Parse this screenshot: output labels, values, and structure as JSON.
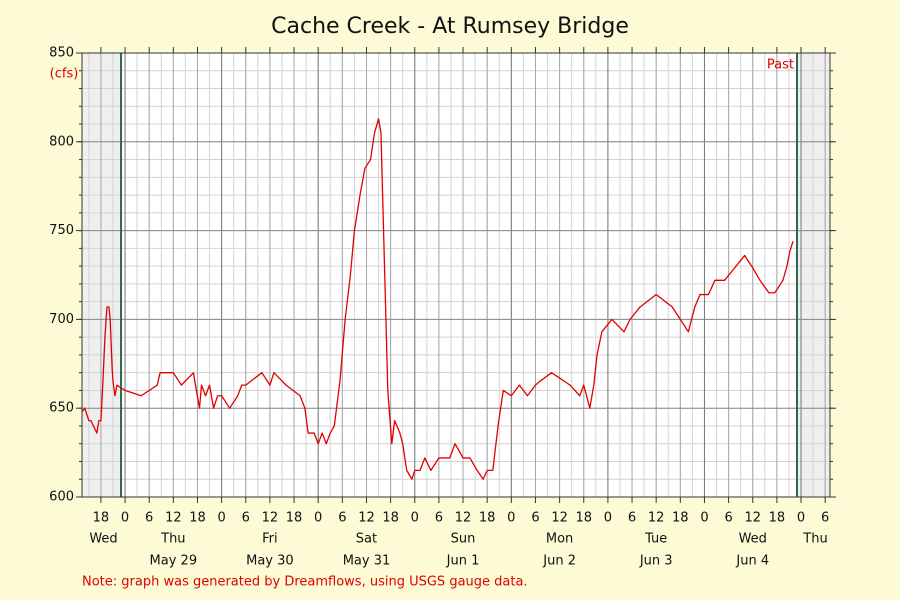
{
  "chart_data": {
    "type": "line",
    "title": "Cache Creek - At Rumsey Bridge",
    "y_unit": "(cfs)",
    "note": "Note: graph was generated by Dreamflows, using USGS gauge data.",
    "window_label": "Past",
    "window": [
      -1,
      167
    ],
    "color": "#e00000",
    "grid": true,
    "minor_grid": {
      "x_step": 3,
      "y_step": 10
    },
    "xlim": [
      -10.7,
      175.2
    ],
    "ylim": [
      600,
      850
    ],
    "yticks": [
      600,
      650,
      700,
      750,
      800,
      850
    ],
    "xticks": [
      {
        "value": -6,
        "label": "18"
      },
      0,
      6,
      12,
      18,
      {
        "value": 24,
        "label": "0"
      },
      {
        "value": 30,
        "label": "6"
      },
      {
        "value": 36,
        "label": "12"
      },
      {
        "value": 42,
        "label": "18"
      },
      {
        "value": 48,
        "label": "0"
      },
      {
        "value": 54,
        "label": "6"
      },
      {
        "value": 60,
        "label": "12"
      },
      {
        "value": 66,
        "label": "18"
      },
      {
        "value": 72,
        "label": "0"
      },
      {
        "value": 78,
        "label": "6"
      },
      {
        "value": 84,
        "label": "12"
      },
      {
        "value": 90,
        "label": "18"
      },
      {
        "value": 96,
        "label": "0"
      },
      {
        "value": 102,
        "label": "6"
      },
      {
        "value": 108,
        "label": "12"
      },
      {
        "value": 114,
        "label": "18"
      },
      {
        "value": 120,
        "label": "0"
      },
      {
        "value": 126,
        "label": "6"
      },
      {
        "value": 132,
        "label": "12"
      },
      {
        "value": 138,
        "label": "18"
      },
      {
        "value": 144,
        "label": "0"
      },
      {
        "value": 150,
        "label": "6"
      },
      {
        "value": 156,
        "label": "12"
      },
      {
        "value": 162,
        "label": "18"
      },
      {
        "value": 168,
        "label": "0"
      },
      {
        "value": 174,
        "label": "6"
      }
    ],
    "days": [
      {
        "weekday": "Wed"
      },
      {
        "weekday": "Thu",
        "date": "May 29"
      },
      {
        "weekday": "Fri",
        "date": "May 30"
      },
      {
        "weekday": "Sat",
        "date": "May 31"
      },
      {
        "weekday": "Sun",
        "date": "Jun 1"
      },
      {
        "weekday": "Mon",
        "date": "Jun 2"
      },
      {
        "weekday": "Tue",
        "date": "Jun 3"
      },
      {
        "weekday": "Wed",
        "date": "Jun 4"
      },
      {
        "weekday": "Thu"
      }
    ],
    "x": [
      -10.7,
      -10,
      -9,
      -8.5,
      -7,
      -6.5,
      -6,
      -5.5,
      -5,
      -4.5,
      -4,
      -3.7,
      -3.2,
      -3,
      -2.5,
      -2,
      0,
      4,
      8,
      8.7,
      12,
      14,
      17,
      17.5,
      18.5,
      19,
      20,
      21,
      22,
      23,
      24,
      26,
      28,
      29,
      30,
      34,
      36,
      37,
      40,
      43.5,
      44.7,
      45.5,
      47,
      48,
      49,
      50,
      51,
      52,
      53.4,
      54.7,
      56,
      57,
      58.4,
      59.6,
      61,
      62,
      63,
      63.6,
      64.6,
      65.3,
      66.3,
      67,
      68.3,
      69,
      70,
      71.3,
      72,
      73.3,
      74.5,
      76,
      78,
      80.7,
      82,
      84,
      85.7,
      87.5,
      89,
      90,
      91.4,
      92.7,
      94,
      96,
      98,
      100,
      102,
      103,
      106,
      110.6,
      113,
      114,
      115.5,
      116.5,
      117.3,
      118.5,
      121,
      124,
      125.5,
      128,
      132,
      136,
      138,
      140,
      141.6,
      142.9,
      145,
      146.6,
      149,
      151.5,
      154,
      156,
      157.8,
      160,
      161.5,
      163.5,
      164.5,
      165.2,
      166
    ],
    "values": [
      648,
      650,
      643,
      643,
      636,
      643,
      643,
      665,
      690,
      707,
      707,
      700,
      672,
      665,
      657,
      663,
      660,
      657,
      663,
      670,
      670,
      663,
      670,
      663,
      650,
      663,
      657,
      663,
      650,
      657,
      657,
      650,
      657,
      663,
      663,
      670,
      663,
      670,
      663,
      657,
      650,
      636,
      636,
      630,
      636,
      630,
      636,
      640,
      665,
      700,
      725,
      750,
      770,
      785,
      790,
      805,
      813,
      805,
      720,
      660,
      630,
      643,
      636,
      630,
      615,
      610,
      615,
      615,
      622,
      615,
      622,
      622,
      630,
      622,
      622,
      615,
      610,
      615,
      615,
      640,
      660,
      657,
      663,
      657,
      663,
      665,
      670,
      663,
      657,
      663,
      650,
      663,
      680,
      693,
      700,
      693,
      700,
      707,
      714,
      707,
      700,
      693,
      707,
      714,
      714,
      722,
      722,
      729,
      736,
      729,
      722,
      715,
      715,
      722,
      730,
      738,
      744
    ]
  }
}
